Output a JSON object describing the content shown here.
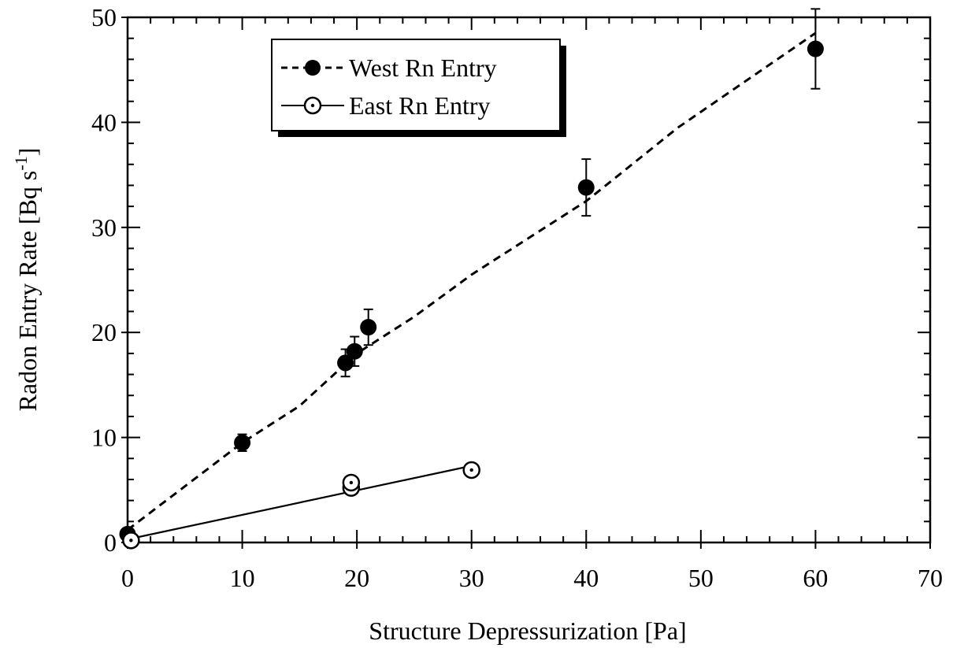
{
  "chart_data": {
    "type": "scatter",
    "xlabel": "Structure Depressurization [Pa]",
    "ylabel_main": "Radon Entry Rate [Bq s",
    "ylabel_sup": "-1",
    "ylabel_close": "]",
    "xlim": [
      0,
      70
    ],
    "ylim": [
      0,
      50
    ],
    "xticks": [
      0,
      10,
      20,
      30,
      40,
      50,
      60,
      70
    ],
    "yticks": [
      0,
      10,
      20,
      30,
      40,
      50
    ],
    "xtick_labels": [
      "0",
      "10",
      "20",
      "30",
      "40",
      "50",
      "60",
      "70"
    ],
    "ytick_labels": [
      "0",
      "10",
      "20",
      "30",
      "40",
      "50"
    ],
    "grid": false,
    "legend_position": "top-left",
    "series": [
      {
        "name": "West Rn Entry",
        "marker": "filled-circle",
        "line": "dashed",
        "color": "#000000",
        "points": [
          {
            "x": 0,
            "y": 0.8,
            "err": 0.4
          },
          {
            "x": 10,
            "y": 9.5,
            "err": 0.8
          },
          {
            "x": 19,
            "y": 17.1,
            "err": 1.3
          },
          {
            "x": 19.8,
            "y": 18.2,
            "err": 1.4
          },
          {
            "x": 21,
            "y": 20.5,
            "err": 1.7
          },
          {
            "x": 40,
            "y": 33.8,
            "err": 2.7
          },
          {
            "x": 60,
            "y": 47,
            "err": 3.8
          }
        ],
        "trend": [
          [
            0,
            1.2
          ],
          [
            10,
            9.5
          ],
          [
            15,
            13
          ],
          [
            20,
            18
          ],
          [
            25,
            21.5
          ],
          [
            30,
            25.5
          ],
          [
            35,
            29
          ],
          [
            40,
            32.5
          ],
          [
            48,
            39.5
          ],
          [
            60,
            48.5
          ]
        ]
      },
      {
        "name": "East Rn Entry",
        "marker": "open-circle-dot",
        "line": "solid",
        "color": "#000000",
        "points": [
          {
            "x": 0.3,
            "y": 0.2
          },
          {
            "x": 19.5,
            "y": 5.2
          },
          {
            "x": 19.5,
            "y": 5.7
          },
          {
            "x": 30,
            "y": 6.9
          }
        ],
        "trend": [
          [
            0,
            0.3
          ],
          [
            30,
            7.3
          ]
        ]
      }
    ]
  }
}
